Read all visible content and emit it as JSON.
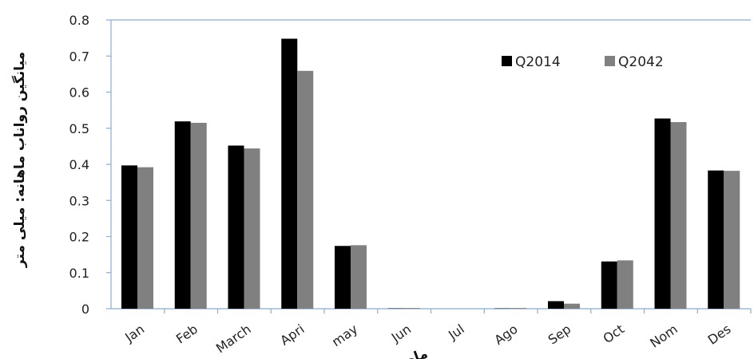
{
  "chart_data": {
    "type": "bar",
    "categories": [
      "Jan",
      "Feb",
      "March",
      "Apri",
      "may",
      "Jun",
      "Jul",
      "Ago",
      "Sep",
      "Oct",
      "Nom",
      "Des"
    ],
    "series": [
      {
        "name": "Q2014",
        "color": "#000000",
        "values": [
          0.397,
          0.519,
          0.452,
          0.748,
          0.174,
          0.001,
          0.0,
          0.001,
          0.021,
          0.131,
          0.527,
          0.383
        ]
      },
      {
        "name": "Q2042",
        "color": "#808080",
        "values": [
          0.392,
          0.515,
          0.444,
          0.659,
          0.176,
          0.002,
          0.0,
          0.002,
          0.014,
          0.134,
          0.517,
          0.382
        ]
      }
    ],
    "yticks": [
      "0",
      "0.1",
      "0.2",
      "0.3",
      "0.4",
      "0.5",
      "0.6",
      "0.7",
      "0.8"
    ],
    "ylim": [
      0,
      0.8
    ],
    "ylabel": "میانگین رواناب ماهانه: میلی متر",
    "xlabel": "ماه",
    "legend_position": "top-right",
    "grid": false
  }
}
